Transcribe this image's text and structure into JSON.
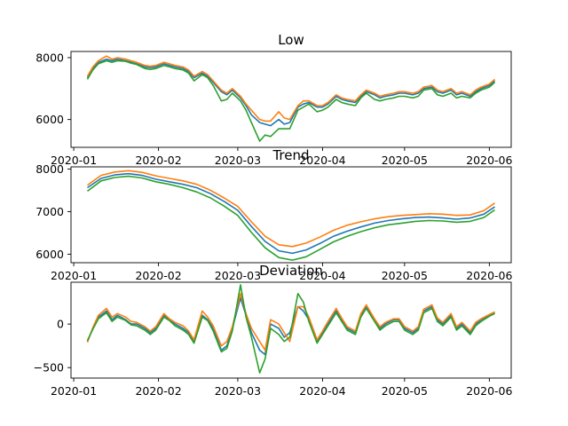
{
  "chart_data": [
    {
      "type": "line",
      "title": "Low",
      "x_ticks": [
        "2020-01",
        "2020-02",
        "2020-03",
        "2020-04",
        "2020-05",
        "2020-06"
      ],
      "y_ticks": [
        6000,
        8000
      ],
      "ylim": [
        5100,
        8200
      ],
      "colors": [
        "#1f77b4",
        "#ff7f0e",
        "#2ca02c"
      ],
      "x": [
        "2020-01-06",
        "2020-01-08",
        "2020-01-10",
        "2020-01-13",
        "2020-01-15",
        "2020-01-17",
        "2020-01-20",
        "2020-01-22",
        "2020-01-24",
        "2020-01-27",
        "2020-01-29",
        "2020-01-31",
        "2020-02-03",
        "2020-02-05",
        "2020-02-07",
        "2020-02-10",
        "2020-02-12",
        "2020-02-14",
        "2020-02-17",
        "2020-02-19",
        "2020-02-21",
        "2020-02-24",
        "2020-02-26",
        "2020-02-28",
        "2020-03-02",
        "2020-03-04",
        "2020-03-06",
        "2020-03-09",
        "2020-03-11",
        "2020-03-13",
        "2020-03-16",
        "2020-03-18",
        "2020-03-20",
        "2020-03-23",
        "2020-03-25",
        "2020-03-27",
        "2020-03-30",
        "2020-04-01",
        "2020-04-03",
        "2020-04-06",
        "2020-04-08",
        "2020-04-10",
        "2020-04-13",
        "2020-04-15",
        "2020-04-17",
        "2020-04-20",
        "2020-04-22",
        "2020-04-24",
        "2020-04-27",
        "2020-04-29",
        "2020-05-01",
        "2020-05-04",
        "2020-05-06",
        "2020-05-08",
        "2020-05-11",
        "2020-05-13",
        "2020-05-15",
        "2020-05-18",
        "2020-05-20",
        "2020-05-22",
        "2020-05-25",
        "2020-05-27",
        "2020-05-29",
        "2020-06-01",
        "2020-06-03"
      ],
      "series": [
        {
          "values": [
            7350,
            7650,
            7850,
            7950,
            7900,
            7950,
            7900,
            7850,
            7800,
            7700,
            7680,
            7700,
            7800,
            7750,
            7700,
            7650,
            7550,
            7350,
            7500,
            7400,
            7200,
            6900,
            6800,
            6950,
            6700,
            6450,
            6150,
            5900,
            5850,
            5800,
            6000,
            5850,
            5900,
            6400,
            6500,
            6550,
            6400,
            6400,
            6500,
            6750,
            6650,
            6600,
            6550,
            6750,
            6900,
            6800,
            6700,
            6750,
            6800,
            6850,
            6850,
            6800,
            6850,
            7000,
            7050,
            6900,
            6850,
            6950,
            6800,
            6850,
            6750,
            6900,
            7000,
            7100,
            7250
          ]
        },
        {
          "values": [
            7400,
            7700,
            7900,
            8050,
            7950,
            8000,
            7950,
            7900,
            7850,
            7750,
            7720,
            7750,
            7850,
            7800,
            7750,
            7700,
            7600,
            7400,
            7550,
            7450,
            7250,
            6950,
            6850,
            7000,
            6750,
            6500,
            6300,
            6000,
            5950,
            5950,
            6250,
            6050,
            6000,
            6450,
            6600,
            6600,
            6450,
            6450,
            6550,
            6800,
            6700,
            6650,
            6600,
            6800,
            6950,
            6850,
            6750,
            6800,
            6850,
            6900,
            6900,
            6850,
            6900,
            7050,
            7100,
            6950,
            6900,
            7000,
            6850,
            6900,
            6800,
            6950,
            7050,
            7150,
            7300
          ]
        },
        {
          "values": [
            7300,
            7600,
            7800,
            7900,
            7850,
            7900,
            7880,
            7820,
            7780,
            7650,
            7620,
            7650,
            7750,
            7700,
            7650,
            7600,
            7500,
            7250,
            7450,
            7350,
            7100,
            6600,
            6650,
            6850,
            6600,
            6300,
            5900,
            5300,
            5500,
            5450,
            5700,
            5700,
            5700,
            6300,
            6400,
            6500,
            6250,
            6300,
            6400,
            6650,
            6550,
            6500,
            6450,
            6700,
            6850,
            6650,
            6600,
            6650,
            6700,
            6750,
            6750,
            6700,
            6750,
            6950,
            7000,
            6800,
            6750,
            6850,
            6700,
            6750,
            6700,
            6850,
            6950,
            7050,
            7200
          ]
        }
      ]
    },
    {
      "type": "line",
      "title": "Trend",
      "x_ticks": [
        "2020-01",
        "2020-02",
        "2020-03",
        "2020-04",
        "2020-05",
        "2020-06"
      ],
      "y_ticks": [
        6000,
        7000,
        8000
      ],
      "ylim": [
        5800,
        8050
      ],
      "colors": [
        "#1f77b4",
        "#ff7f0e",
        "#2ca02c"
      ],
      "x": [
        "2020-01-06",
        "2020-01-11",
        "2020-01-16",
        "2020-01-21",
        "2020-01-26",
        "2020-01-31",
        "2020-02-05",
        "2020-02-10",
        "2020-02-15",
        "2020-02-20",
        "2020-02-25",
        "2020-03-01",
        "2020-03-06",
        "2020-03-11",
        "2020-03-16",
        "2020-03-21",
        "2020-03-26",
        "2020-03-31",
        "2020-04-05",
        "2020-04-10",
        "2020-04-15",
        "2020-04-20",
        "2020-04-25",
        "2020-04-30",
        "2020-05-05",
        "2020-05-10",
        "2020-05-15",
        "2020-05-20",
        "2020-05-25",
        "2020-05-30",
        "2020-06-03"
      ],
      "series": [
        {
          "values": [
            7560,
            7780,
            7860,
            7890,
            7850,
            7760,
            7700,
            7640,
            7560,
            7420,
            7240,
            7030,
            6650,
            6300,
            6080,
            6020,
            6100,
            6250,
            6420,
            6540,
            6640,
            6730,
            6790,
            6830,
            6860,
            6870,
            6850,
            6820,
            6850,
            6940,
            7110
          ]
        },
        {
          "values": [
            7620,
            7850,
            7930,
            7960,
            7920,
            7840,
            7780,
            7720,
            7640,
            7500,
            7320,
            7120,
            6760,
            6420,
            6220,
            6180,
            6260,
            6400,
            6560,
            6680,
            6760,
            6830,
            6880,
            6910,
            6930,
            6950,
            6940,
            6910,
            6920,
            7020,
            7200
          ]
        },
        {
          "values": [
            7480,
            7720,
            7800,
            7830,
            7790,
            7700,
            7640,
            7560,
            7460,
            7320,
            7130,
            6910,
            6510,
            6150,
            5920,
            5860,
            5940,
            6110,
            6290,
            6420,
            6530,
            6620,
            6690,
            6730,
            6770,
            6790,
            6780,
            6750,
            6770,
            6860,
            7040
          ]
        }
      ]
    },
    {
      "type": "line",
      "title": "Deviation",
      "x_ticks": [
        "2020-01",
        "2020-02",
        "2020-03",
        "2020-04",
        "2020-05",
        "2020-06"
      ],
      "y_ticks": [
        -500,
        0
      ],
      "ylim": [
        -620,
        480
      ],
      "colors": [
        "#1f77b4",
        "#ff7f0e",
        "#2ca02c"
      ],
      "x": [
        "2020-01-06",
        "2020-01-08",
        "2020-01-10",
        "2020-01-13",
        "2020-01-15",
        "2020-01-17",
        "2020-01-20",
        "2020-01-22",
        "2020-01-24",
        "2020-01-27",
        "2020-01-29",
        "2020-01-31",
        "2020-02-03",
        "2020-02-05",
        "2020-02-07",
        "2020-02-10",
        "2020-02-12",
        "2020-02-14",
        "2020-02-17",
        "2020-02-19",
        "2020-02-21",
        "2020-02-24",
        "2020-02-26",
        "2020-02-28",
        "2020-03-02",
        "2020-03-04",
        "2020-03-06",
        "2020-03-09",
        "2020-03-11",
        "2020-03-13",
        "2020-03-16",
        "2020-03-18",
        "2020-03-20",
        "2020-03-23",
        "2020-03-25",
        "2020-03-27",
        "2020-03-30",
        "2020-04-01",
        "2020-04-03",
        "2020-04-06",
        "2020-04-08",
        "2020-04-10",
        "2020-04-13",
        "2020-04-15",
        "2020-04-17",
        "2020-04-20",
        "2020-04-22",
        "2020-04-24",
        "2020-04-27",
        "2020-04-29",
        "2020-05-01",
        "2020-05-04",
        "2020-05-06",
        "2020-05-08",
        "2020-05-11",
        "2020-05-13",
        "2020-05-15",
        "2020-05-18",
        "2020-05-20",
        "2020-05-22",
        "2020-05-25",
        "2020-05-27",
        "2020-05-29",
        "2020-06-01",
        "2020-06-03"
      ],
      "series": [
        {
          "values": [
            -200,
            -50,
            80,
            150,
            50,
            100,
            50,
            0,
            0,
            -50,
            -100,
            -50,
            100,
            50,
            0,
            -50,
            -100,
            -200,
            100,
            50,
            -50,
            -300,
            -250,
            -50,
            300,
            100,
            -100,
            -300,
            -350,
            0,
            -50,
            -150,
            -100,
            200,
            150,
            50,
            -200,
            -100,
            0,
            150,
            50,
            -50,
            -100,
            100,
            200,
            50,
            -50,
            0,
            50,
            50,
            -50,
            -100,
            -50,
            150,
            200,
            50,
            0,
            100,
            -50,
            0,
            -100,
            0,
            50,
            100,
            130
          ]
        },
        {
          "values": [
            -210,
            -40,
            100,
            180,
            80,
            120,
            80,
            30,
            20,
            -30,
            -80,
            -30,
            120,
            60,
            20,
            -20,
            -80,
            -180,
            150,
            80,
            -20,
            -250,
            -200,
            -30,
            350,
            120,
            -50,
            -200,
            -300,
            50,
            0,
            -100,
            -200,
            200,
            200,
            80,
            -180,
            -80,
            30,
            180,
            70,
            -30,
            -80,
            120,
            220,
            60,
            -30,
            20,
            60,
            60,
            -30,
            -80,
            -30,
            170,
            220,
            70,
            20,
            120,
            -30,
            20,
            -80,
            20,
            60,
            110,
            140
          ]
        },
        {
          "values": [
            -190,
            -60,
            60,
            130,
            30,
            80,
            40,
            -10,
            -20,
            -70,
            -120,
            -70,
            80,
            40,
            -20,
            -70,
            -120,
            -220,
            80,
            40,
            -80,
            -320,
            -280,
            -80,
            450,
            80,
            -150,
            -560,
            -400,
            -50,
            -120,
            -200,
            -150,
            350,
            250,
            30,
            -220,
            -120,
            -20,
            130,
            30,
            -70,
            -120,
            80,
            180,
            30,
            -70,
            -20,
            30,
            30,
            -70,
            -120,
            -70,
            130,
            180,
            30,
            -20,
            80,
            -70,
            -20,
            -120,
            -20,
            30,
            90,
            120
          ]
        }
      ]
    }
  ]
}
